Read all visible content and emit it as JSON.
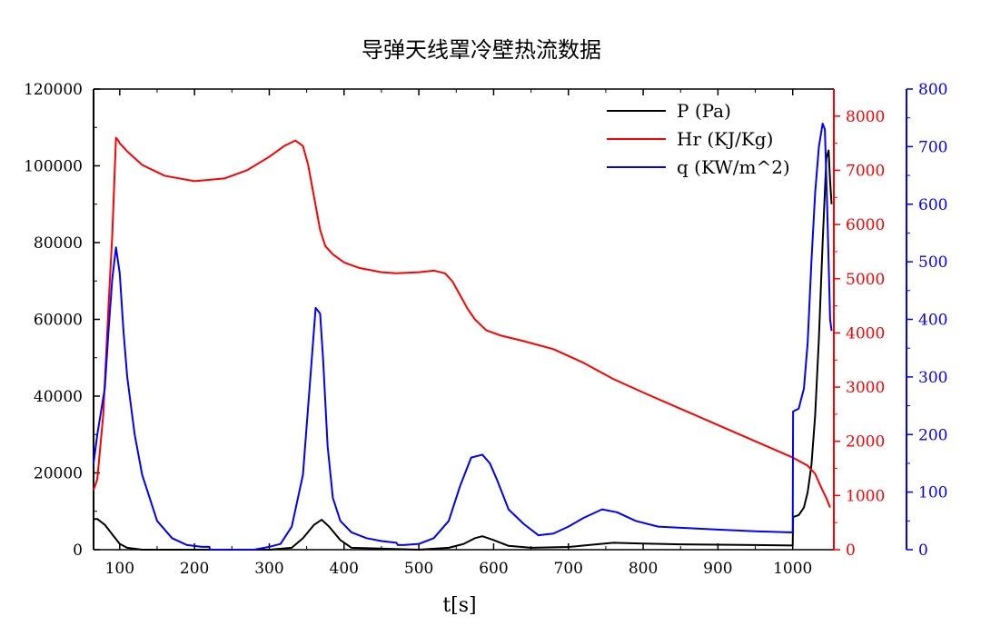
{
  "chart_data": {
    "type": "line",
    "title": "导弹天线罩冷壁热流数据",
    "xlabel": "t[s]",
    "xlim": [
      65,
      1055
    ],
    "xticks": [
      100,
      200,
      300,
      400,
      500,
      600,
      700,
      800,
      900,
      1000
    ],
    "grid": false,
    "legend_position": "top-right",
    "axes": [
      {
        "id": "left",
        "color": "#000000",
        "ylim": [
          0,
          120000
        ],
        "ticks": [
          0,
          20000,
          40000,
          60000,
          80000,
          100000,
          120000
        ]
      },
      {
        "id": "right1",
        "color": "#ff0000",
        "ylim": [
          0,
          8500
        ],
        "ticks": [
          0,
          1000,
          2000,
          3000,
          4000,
          5000,
          6000,
          7000,
          8000
        ]
      },
      {
        "id": "right2",
        "color": "#0000ff",
        "ylim": [
          0,
          800
        ],
        "ticks": [
          0,
          100,
          200,
          300,
          400,
          500,
          600,
          700,
          800
        ]
      }
    ],
    "series": [
      {
        "name": "P (Pa)",
        "color": "#000000",
        "axis": "left",
        "x": [
          65,
          70,
          80,
          90,
          100,
          110,
          130,
          200,
          300,
          330,
          345,
          360,
          370,
          380,
          395,
          410,
          500,
          540,
          560,
          575,
          585,
          600,
          620,
          650,
          700,
          760,
          800,
          850,
          900,
          950,
          1000,
          1000.5,
          1008,
          1015,
          1020,
          1025,
          1030,
          1035,
          1040,
          1045,
          1048,
          1050,
          1052
        ],
        "y": [
          8000,
          8000,
          6500,
          4000,
          1500,
          500,
          0,
          0,
          0,
          500,
          3000,
          6500,
          7800,
          6000,
          2500,
          500,
          0,
          500,
          1500,
          3000,
          3500,
          2500,
          1000,
          500,
          700,
          1800,
          1600,
          1400,
          1300,
          1200,
          1100,
          8500,
          9000,
          11000,
          15000,
          22000,
          35000,
          55000,
          80000,
          102000,
          104000,
          96000,
          90000
        ]
      },
      {
        "name": "Hr (KJ/Kg)",
        "color": "#ff0000",
        "axis": "right1",
        "x": [
          65,
          70,
          78,
          85,
          90,
          95,
          98,
          100,
          110,
          130,
          160,
          200,
          240,
          270,
          300,
          320,
          335,
          345,
          352,
          360,
          368,
          375,
          385,
          400,
          420,
          450,
          470,
          500,
          520,
          535,
          545,
          555,
          565,
          575,
          590,
          610,
          640,
          680,
          720,
          760,
          800,
          850,
          900,
          950,
          1000,
          1020,
          1030,
          1038,
          1045,
          1050
        ],
        "y": [
          1100,
          1300,
          2500,
          4500,
          5800,
          7600,
          7550,
          7500,
          7350,
          7100,
          6900,
          6800,
          6850,
          7000,
          7250,
          7450,
          7550,
          7450,
          7100,
          6500,
          5900,
          5600,
          5450,
          5300,
          5200,
          5120,
          5100,
          5120,
          5150,
          5100,
          4950,
          4700,
          4450,
          4250,
          4050,
          3950,
          3850,
          3700,
          3450,
          3150,
          2900,
          2600,
          2300,
          2000,
          1700,
          1550,
          1400,
          1150,
          950,
          780
        ]
      },
      {
        "name": "q (KW/m^2)",
        "color": "#0000ff",
        "axis": "right2",
        "x": [
          65,
          70,
          80,
          85,
          90,
          95,
          100,
          105,
          110,
          120,
          130,
          150,
          170,
          190,
          210,
          220,
          220.5,
          230,
          250,
          280,
          300,
          315,
          330,
          345,
          355,
          362,
          368,
          372,
          378,
          385,
          395,
          410,
          430,
          450,
          470,
          472,
          480,
          500,
          520,
          540,
          555,
          570,
          585,
          595,
          605,
          620,
          640,
          660,
          680,
          700,
          720,
          745,
          765,
          790,
          820,
          850,
          900,
          950,
          1000,
          1000.5,
          1008,
          1015,
          1020,
          1025,
          1030,
          1035,
          1040,
          1043,
          1046,
          1049,
          1050,
          1052
        ],
        "y": [
          150,
          200,
          280,
          380,
          470,
          525,
          480,
          380,
          300,
          200,
          130,
          50,
          20,
          8,
          5,
          5,
          0,
          0,
          0,
          0,
          5,
          10,
          40,
          130,
          300,
          420,
          410,
          330,
          180,
          90,
          50,
          30,
          20,
          15,
          12,
          8,
          8,
          10,
          20,
          50,
          110,
          160,
          165,
          150,
          120,
          70,
          45,
          25,
          28,
          40,
          55,
          70,
          65,
          50,
          40,
          38,
          35,
          32,
          30,
          240,
          245,
          280,
          360,
          500,
          620,
          700,
          740,
          730,
          600,
          450,
          400,
          380
        ]
      }
    ]
  }
}
